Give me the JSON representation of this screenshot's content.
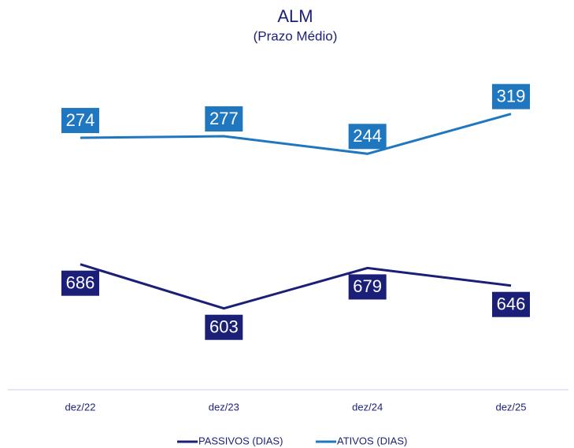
{
  "chart_data": {
    "type": "line",
    "title": "ALM",
    "subtitle": "(Prazo Médio)",
    "categories": [
      "dez/22",
      "dez/23",
      "dez/24",
      "dez/25"
    ],
    "series": [
      {
        "name": "PASSIVOS (DIAS)",
        "color": "#1b1f78",
        "values": [
          686,
          603,
          679,
          646
        ],
        "axis": "y"
      },
      {
        "name": "ATIVOS (DIAS)",
        "color": "#1f77c0",
        "values": [
          274,
          277,
          244,
          319
        ],
        "axis": "y2"
      }
    ],
    "ylim": [
      450,
      1050
    ],
    "y2lim": [
      -200,
      400
    ],
    "legend": "bottom"
  }
}
